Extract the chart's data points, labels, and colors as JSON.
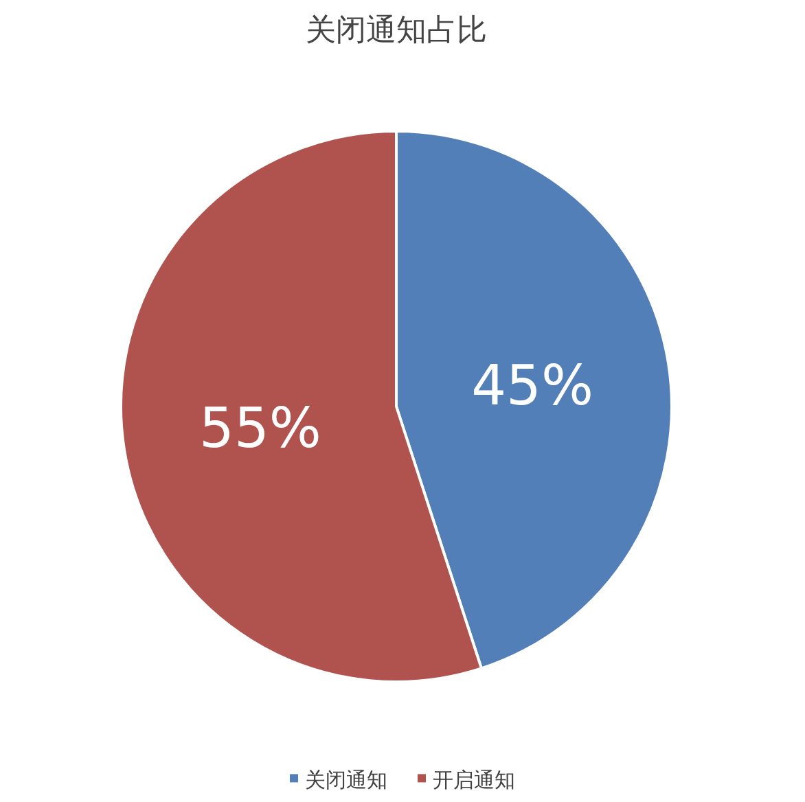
{
  "chart_data": {
    "type": "pie",
    "title": "关闭通知占比",
    "categories": [
      "关闭通知",
      "开启通知"
    ],
    "values": [
      45,
      55
    ],
    "colors": [
      "#527fb8",
      "#b0534e"
    ],
    "value_labels": [
      "45%",
      "55%"
    ],
    "legend": "bottom"
  }
}
